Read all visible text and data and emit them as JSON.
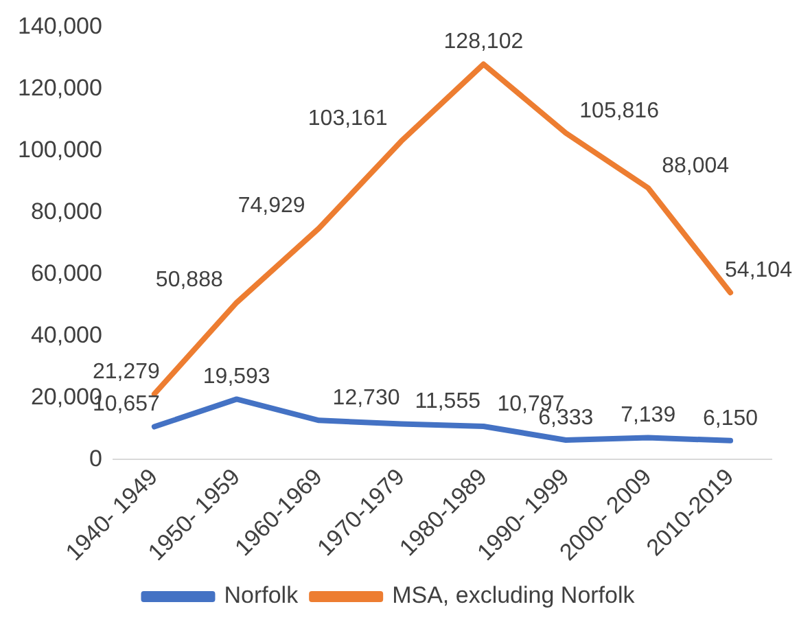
{
  "chart_data": {
    "type": "line",
    "categories": [
      "1940- 1949",
      "1950- 1959",
      "1960-1969",
      "1970-1979",
      "1980-1989",
      "1990- 1999",
      "2000- 2009",
      "2010-2019"
    ],
    "series": [
      {
        "name": "Norfolk",
        "color": "#4472c4",
        "values": [
          10657,
          19593,
          12730,
          11555,
          10797,
          6333,
          7139,
          6150
        ],
        "value_labels": [
          "10,657",
          "19,593",
          "12,730",
          "11,555",
          "10,797",
          "6,333",
          "7,139",
          "6,150"
        ]
      },
      {
        "name": "MSA, excluding Norfolk",
        "color": "#ed7d31",
        "values": [
          21279,
          50888,
          74929,
          103161,
          128102,
          105816,
          88004,
          54104
        ],
        "value_labels": [
          "21,279",
          "50,888",
          "74,929",
          "103,161",
          "128,102",
          "105,816",
          "88,004",
          "54,104"
        ]
      }
    ],
    "ylim": [
      0,
      140000
    ],
    "yticks": [
      0,
      {
        "value": 20000,
        "label": "20,000"
      },
      {
        "value": 40000,
        "label": "40,000"
      },
      {
        "value": 60000,
        "label": "60,000"
      },
      {
        "value": 80000,
        "label": "80,000"
      },
      {
        "value": 100000,
        "label": "100,000"
      },
      {
        "value": 120000,
        "label": "120,000"
      },
      {
        "value": 140000,
        "label": "140,000"
      }
    ],
    "grid": false,
    "legend": "bottom",
    "marker": "none",
    "line_style": "solid"
  }
}
